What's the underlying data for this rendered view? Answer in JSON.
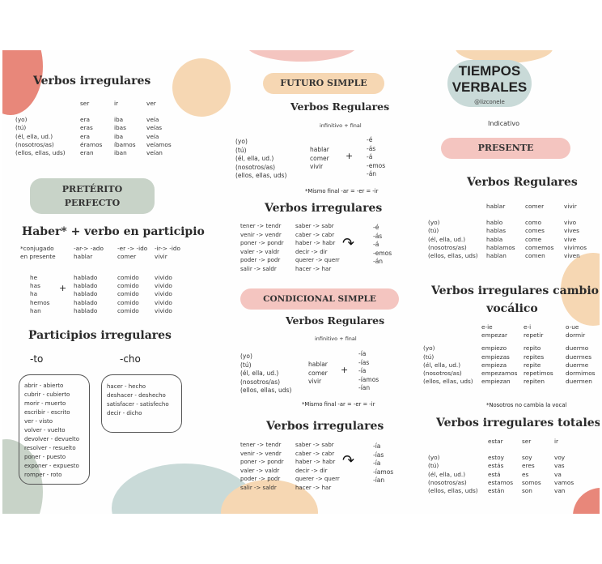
{
  "colors": {
    "coral": "#e8877a",
    "peach": "#f6d7b3",
    "sage": "#c8d3c8",
    "blue_grey": "#c9dad8",
    "pink": "#f4c5c0"
  },
  "col1": {
    "verbos_irregulares": {
      "title": "Verbos irregulares",
      "headers": [
        "ser",
        "ir",
        "ver"
      ],
      "rows": [
        [
          "(yo)",
          "era",
          "iba",
          "veía"
        ],
        [
          "(tú)",
          "eras",
          "ibas",
          "veías"
        ],
        [
          "(él, ella, ud.)",
          "era",
          "iba",
          "veía"
        ],
        [
          "(nosotros/as)",
          "éramos",
          "íbamos",
          "veíamos"
        ],
        [
          "(ellos, ellas, uds)",
          "eran",
          "iban",
          "veían"
        ]
      ]
    },
    "preterito_pill": "PRETÉRITO\nPERFECTO",
    "haber_title": "Haber* + verbo en participio",
    "haber_header": [
      "*conjugado\nen presente",
      "-ar-> -ado\nhablar",
      "-er -> -ido\ncomer",
      "-ir-> -ido\nvivir"
    ],
    "haber_rows": [
      [
        "he",
        "hablado",
        "comido",
        "vivido"
      ],
      [
        "has",
        "hablado",
        "comido",
        "vivido"
      ],
      [
        "ha",
        "hablado",
        "comido",
        "vivido"
      ],
      [
        "hemos",
        "hablado",
        "comido",
        "vivido"
      ],
      [
        "han",
        "hablado",
        "comido",
        "vivido"
      ]
    ],
    "plus": "+",
    "participios_title": "Participios irregulares",
    "to_label": "-to",
    "cho_label": "-cho",
    "to_list": "abrir - abierto\ncubrir - cubierto\nmorir - muerto\nescribir - escrito\nver - visto\nvolver - vuelto\ndevolver - devuelto\nresolver - resuelto\nponer - puesto\nexponer - expuesto\nromper - roto",
    "cho_list": "hacer - hecho\ndeshacer - deshecho\nsatisfacer - satisfecho\ndecir - dicho"
  },
  "col2": {
    "futuro_pill": "FUTURO SIMPLE",
    "futuro": {
      "regulares_title": "Verbos Regulares",
      "formula": "infinitivo + final",
      "subjects": "(yo)\n(tú)\n(él, ella, ud.)\n(nosotros/as)\n(ellos, ellas, uds)",
      "verbs": "hablar\ncomer\nvivir",
      "plus": "+",
      "endings": "-é\n-ás\n-á\n-emos\n-án",
      "note": "*Mismo final -ar = -er = -ir",
      "irregulares_title": "Verbos irregulares",
      "irr_left": "tener -> tendr\nvenir -> vendr\nponer -> pondr\nvaler -> valdr\npoder -> podr\nsalir -> saldr",
      "irr_right": "saber -> sabr\ncaber -> cabr\nhaber -> habr\ndecir -> dir\nquerer -> querr\nhacer -> har",
      "irr_endings": "-é\n-ás\n-á\n-emos\n-án"
    },
    "condicional_pill": "CONDICIONAL SIMPLE",
    "condicional": {
      "regulares_title": "Verbos Regulares",
      "formula": "infinitivo + final",
      "subjects": "(yo)\n(tú)\n(él, ella, ud.)\n(nosotros/as)\n(ellos, ellas, uds)",
      "verbs": "hablar\ncomer\nvivir",
      "plus": "+",
      "endings": "-ía\n-ías\n-ía\n-íamos\n-ían",
      "note": "*Mismo final -ar = -er = -ir",
      "irregulares_title": "Verbos irregulares",
      "irr_left": "tener -> tendr\nvenir -> vendr\nponer -> pondr\nvaler -> valdr\npoder -> podr\nsalir -> saldr",
      "irr_right": "saber -> sabr\ncaber -> cabr\nhaber -> habr\ndecir -> dir\nquerer -> querr\nhacer -> har",
      "irr_endings": "-ía\n-ías\n-ía\n-íamos\n-ían"
    }
  },
  "col3": {
    "title": "TIEMPOS\nVERBALES",
    "handle": "@lizconele",
    "indicativo": "Indicativo",
    "presente_pill": "PRESENTE",
    "regulares_title": "Verbos Regulares",
    "reg_headers": [
      "hablar",
      "comer",
      "vivir"
    ],
    "reg_rows": [
      [
        "(yo)",
        "hablo",
        "como",
        "vivo"
      ],
      [
        "(tú)",
        "hablas",
        "comes",
        "vives"
      ],
      [
        "(él, ella, ud.)",
        "habla",
        "come",
        "vive"
      ],
      [
        "(nosotros/as)",
        "hablamos",
        "comemos",
        "vivimos"
      ],
      [
        "(ellos, ellas, uds)",
        "hablan",
        "comen",
        "viven"
      ]
    ],
    "cambio_title": "Verbos irregulares cambio\nvocálico",
    "cambio_headers": [
      "e-ie\nempezar",
      "e-i\nrepetir",
      "o-ue\ndormir"
    ],
    "cambio_rows": [
      [
        "(yo)",
        "empiezo",
        "repito",
        "duermo"
      ],
      [
        "(tú)",
        "empiezas",
        "repites",
        "duermes"
      ],
      [
        "(él, ella, ud.)",
        "empieza",
        "repite",
        "duerme"
      ],
      [
        "(nosotros/as)",
        "empezamos",
        "repetimos",
        "dormimos"
      ],
      [
        "(ellos, ellas, uds)",
        "empiezan",
        "repiten",
        "duermen"
      ]
    ],
    "cambio_note": "*Nosotros no cambia la vocal",
    "totales_title": "Verbos irregulares totales",
    "tot_headers": [
      "estar",
      "ser",
      "ir"
    ],
    "tot_rows": [
      [
        "(yo)",
        "estoy",
        "soy",
        "voy"
      ],
      [
        "(tú)",
        "estás",
        "eres",
        "vas"
      ],
      [
        "(él, ella, ud.)",
        "está",
        "es",
        "va"
      ],
      [
        "(nosotros/as)",
        "estamos",
        "somos",
        "vamos"
      ],
      [
        "(ellos, ellas, uds)",
        "están",
        "son",
        "van"
      ]
    ]
  }
}
